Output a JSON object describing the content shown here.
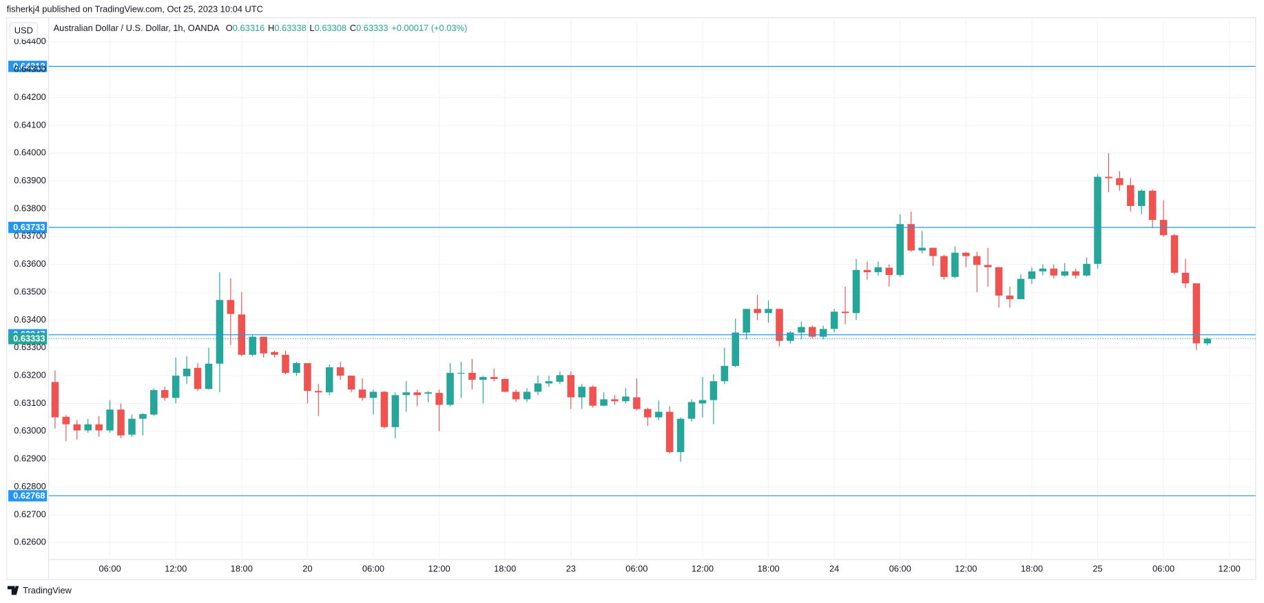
{
  "header": {
    "author_line": "fisherkj4 published on TradingView.com, Oct 25, 2023 10:04 UTC",
    "currency_button": "USD",
    "instrument": "Australian Dollar / U.S. Dollar, 1h, OANDA",
    "ohlc": [
      {
        "key": "O",
        "value": "0.63316"
      },
      {
        "key": "H",
        "value": "0.63338"
      },
      {
        "key": "L",
        "value": "0.63308"
      },
      {
        "key": "C",
        "value": "0.63333"
      }
    ],
    "change": "+0.00017 (+0.03%)"
  },
  "footer": {
    "brand": "TradingView"
  },
  "chart_data": {
    "type": "candlestick",
    "categories": [
      null,
      null,
      null,
      null,
      null,
      "06:00",
      null,
      null,
      null,
      null,
      null,
      "12:00",
      null,
      null,
      null,
      null,
      null,
      "18:00",
      null,
      null,
      null,
      null,
      null,
      "20",
      null,
      null,
      null,
      null,
      null,
      "06:00",
      null,
      null,
      null,
      null,
      null,
      "12:00",
      null,
      null,
      null,
      null,
      null,
      "18:00",
      null,
      null,
      null,
      null,
      null,
      "23",
      null,
      null,
      null,
      null,
      null,
      "06:00",
      null,
      null,
      null,
      null,
      null,
      "12:00",
      null,
      null,
      null,
      null,
      null,
      "18:00",
      null,
      null,
      null,
      null,
      null,
      "24",
      null,
      null,
      null,
      null,
      null,
      "06:00",
      null,
      null,
      null,
      null,
      null,
      "12:00",
      null,
      null,
      null,
      null,
      null,
      "18:00",
      null,
      null,
      null,
      null,
      null,
      "25",
      null,
      null,
      null,
      null,
      null,
      "06:00",
      null,
      null,
      null,
      null,
      null,
      "12:00"
    ],
    "open": [
      0.63177,
      0.63052,
      0.63025,
      0.63003,
      0.63025,
      0.63003,
      0.63078,
      0.62988,
      0.63045,
      0.6306,
      0.63148,
      0.6312,
      0.63198,
      0.63228,
      0.63152,
      0.63243,
      0.63472,
      0.6342,
      0.63275,
      0.6334,
      0.63285,
      0.63275,
      0.6321,
      0.63245,
      0.63145,
      0.6314,
      0.6323,
      0.632,
      0.6315,
      0.6312,
      0.63142,
      0.63015,
      0.6313,
      0.6314,
      0.63135,
      0.63138,
      0.63095,
      0.63208,
      0.6321,
      0.63185,
      0.63195,
      0.63188,
      0.63142,
      0.63115,
      0.63142,
      0.63172,
      0.63178,
      0.63202,
      0.63122,
      0.6316,
      0.63092,
      0.63115,
      0.63108,
      0.63122,
      0.6308,
      0.6305,
      0.6307,
      0.62925,
      0.63045,
      0.631,
      0.63112,
      0.6318,
      0.63235,
      0.63355,
      0.6344,
      0.63425,
      0.6344,
      0.63325,
      0.63355,
      0.63375,
      0.6334,
      0.63368,
      0.6343,
      0.63425,
      0.6358,
      0.63572,
      0.63588,
      0.63562,
      0.63745,
      0.6365,
      0.6366,
      0.6363,
      0.63555,
      0.63642,
      0.6363,
      0.63598,
      0.6359,
      0.63488,
      0.63475,
      0.63548,
      0.63575,
      0.63585,
      0.6356,
      0.63575,
      0.6356,
      0.63602,
      0.63915,
      0.6391,
      0.63885,
      0.6381,
      0.63865,
      0.6376,
      0.63705,
      0.6357,
      0.63532,
      0.63316,
      null,
      null
    ],
    "high": [
      0.63219,
      0.63058,
      0.6304,
      0.63045,
      0.63055,
      0.63112,
      0.631,
      0.6306,
      0.63065,
      0.63155,
      0.6316,
      0.63265,
      0.6327,
      0.63245,
      0.633,
      0.63572,
      0.6355,
      0.635,
      0.63345,
      0.6334,
      0.6329,
      0.6329,
      0.6325,
      0.63245,
      0.6317,
      0.6324,
      0.6325,
      0.632,
      0.6319,
      0.6315,
      0.63145,
      0.6314,
      0.6318,
      0.6315,
      0.63145,
      0.6315,
      0.63245,
      0.6325,
      0.6326,
      0.632,
      0.63225,
      0.6319,
      0.6315,
      0.63155,
      0.632,
      0.632,
      0.63215,
      0.63215,
      0.6317,
      0.63165,
      0.6314,
      0.6313,
      0.63155,
      0.6319,
      0.63085,
      0.6311,
      0.6309,
      0.6305,
      0.63115,
      0.63195,
      0.63205,
      0.633,
      0.63405,
      0.6344,
      0.6349,
      0.6347,
      0.6344,
      0.6336,
      0.63395,
      0.6338,
      0.6338,
      0.6344,
      0.6352,
      0.6362,
      0.6361,
      0.6361,
      0.636,
      0.6378,
      0.6379,
      0.6372,
      0.6366,
      0.63635,
      0.63665,
      0.63645,
      0.63645,
      0.6366,
      0.6359,
      0.6352,
      0.63565,
      0.6359,
      0.636,
      0.636,
      0.63605,
      0.63585,
      0.63625,
      0.63925,
      0.64,
      0.63935,
      0.6391,
      0.6387,
      0.6387,
      0.6383,
      0.6371,
      0.6362,
      0.63532,
      0.63338,
      null,
      null
    ],
    "low": [
      0.6301,
      0.62965,
      0.6297,
      0.62995,
      0.6298,
      0.62995,
      0.62975,
      0.6298,
      0.62985,
      0.63055,
      0.6311,
      0.631,
      0.6317,
      0.63145,
      0.6315,
      0.6314,
      0.6331,
      0.6327,
      0.6327,
      0.63265,
      0.63265,
      0.63205,
      0.632,
      0.631,
      0.63055,
      0.6313,
      0.63185,
      0.6314,
      0.6311,
      0.6306,
      0.6301,
      0.62975,
      0.6307,
      0.6309,
      0.63105,
      0.63,
      0.6309,
      0.6312,
      0.6315,
      0.631,
      0.6318,
      0.6314,
      0.63105,
      0.63105,
      0.6313,
      0.6316,
      0.6317,
      0.6308,
      0.6308,
      0.63085,
      0.6309,
      0.63095,
      0.631,
      0.63075,
      0.6302,
      0.6304,
      0.6292,
      0.6289,
      0.63035,
      0.6305,
      0.63025,
      0.6317,
      0.6323,
      0.6333,
      0.634,
      0.6339,
      0.63305,
      0.63315,
      0.6333,
      0.63335,
      0.6333,
      0.63355,
      0.63385,
      0.634,
      0.63545,
      0.6356,
      0.6352,
      0.63555,
      0.63645,
      0.6364,
      0.63595,
      0.63545,
      0.6355,
      0.6359,
      0.635,
      0.6352,
      0.63445,
      0.63445,
      0.63475,
      0.6353,
      0.6356,
      0.6355,
      0.63555,
      0.6355,
      0.63555,
      0.63585,
      0.6386,
      0.63865,
      0.6379,
      0.6378,
      0.6373,
      0.637,
      0.63565,
      0.63515,
      0.63292,
      0.63308,
      null,
      null
    ],
    "close": [
      0.6305,
      0.63025,
      0.63003,
      0.63025,
      0.63003,
      0.63078,
      0.62985,
      0.63045,
      0.63062,
      0.63148,
      0.6312,
      0.632,
      0.63225,
      0.63152,
      0.63243,
      0.63472,
      0.63422,
      0.63275,
      0.6334,
      0.6328,
      0.63275,
      0.6321,
      0.63245,
      0.63145,
      0.6314,
      0.6323,
      0.632,
      0.6315,
      0.6312,
      0.63142,
      0.63015,
      0.6313,
      0.6314,
      0.6313,
      0.6314,
      0.63095,
      0.6321,
      0.6321,
      0.63185,
      0.63195,
      0.63188,
      0.63142,
      0.63115,
      0.63142,
      0.63172,
      0.6318,
      0.63202,
      0.63122,
      0.6316,
      0.63092,
      0.63115,
      0.63108,
      0.63125,
      0.6308,
      0.6305,
      0.6307,
      0.62925,
      0.63045,
      0.63105,
      0.63112,
      0.6318,
      0.63235,
      0.63355,
      0.6344,
      0.63425,
      0.6344,
      0.63325,
      0.63355,
      0.63375,
      0.6334,
      0.63368,
      0.6343,
      0.63425,
      0.6358,
      0.63572,
      0.6359,
      0.63562,
      0.63745,
      0.6365,
      0.6366,
      0.6363,
      0.63555,
      0.63642,
      0.6363,
      0.63598,
      0.6359,
      0.63488,
      0.63475,
      0.63548,
      0.63575,
      0.63585,
      0.6356,
      0.63575,
      0.6356,
      0.63602,
      0.63915,
      0.6391,
      0.63885,
      0.6381,
      0.63865,
      0.6376,
      0.63705,
      0.6357,
      0.63532,
      0.63316,
      0.63333,
      null,
      null
    ],
    "up_color": "#26a69a",
    "down_color": "#ef5350",
    "ylim": [
      0.62539,
      0.64487
    ],
    "yticks": [
      {
        "value": 0.626,
        "label": "0.62600"
      },
      {
        "value": 0.627,
        "label": "0.62700"
      },
      {
        "value": 0.628,
        "label": "0.62800"
      },
      {
        "value": 0.629,
        "label": "0.62900"
      },
      {
        "value": 0.63,
        "label": "0.63000"
      },
      {
        "value": 0.631,
        "label": "0.63100"
      },
      {
        "value": 0.632,
        "label": "0.63200"
      },
      {
        "value": 0.633,
        "label": "0.63300"
      },
      {
        "value": 0.634,
        "label": "0.63400"
      },
      {
        "value": 0.635,
        "label": "0.63500"
      },
      {
        "value": 0.636,
        "label": "0.63600"
      },
      {
        "value": 0.637,
        "label": "0.63700"
      },
      {
        "value": 0.638,
        "label": "0.63800"
      },
      {
        "value": 0.639,
        "label": "0.63900"
      },
      {
        "value": 0.64,
        "label": "0.64000"
      },
      {
        "value": 0.641,
        "label": "0.64100"
      },
      {
        "value": 0.642,
        "label": "0.64200"
      },
      {
        "value": 0.643,
        "label": "0.64300"
      },
      {
        "value": 0.644,
        "label": "0.64400"
      }
    ],
    "grid": true,
    "levels": [
      0.64312,
      0.63733,
      0.63347,
      0.62768
    ],
    "level_color": "#2196f3",
    "last_price": 0.63333,
    "last_price_color": "#26a69a"
  }
}
